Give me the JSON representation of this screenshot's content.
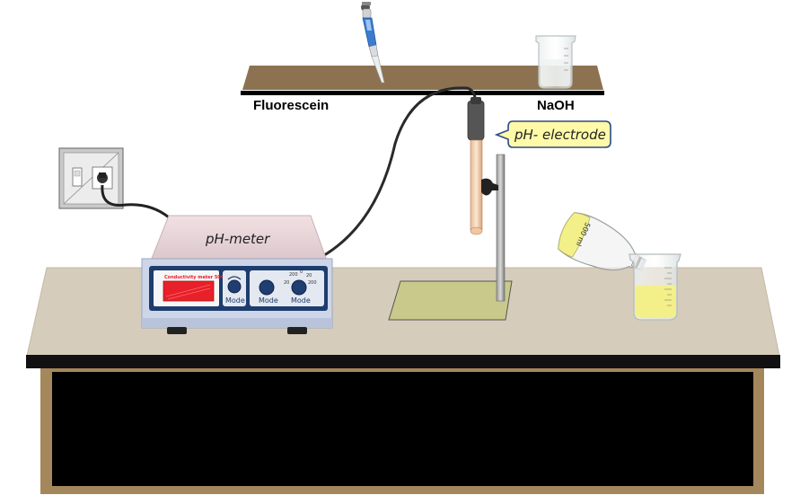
{
  "shelf": {
    "left_label": "Fluorescein",
    "right_label": "NaOH"
  },
  "electrode": {
    "callout": "pH- electrode"
  },
  "meter": {
    "title": "pH-meter",
    "display_brand": "Conductivity meter 504",
    "mode_buttons": [
      "Mode",
      "Mode",
      "Mode"
    ],
    "dial_marks": [
      "200",
      "0",
      "20",
      "20",
      "200"
    ]
  },
  "bottle": {
    "volume_label": "500 ml"
  },
  "colors": {
    "bench_top": "#d6ccbb",
    "bench_frame": "#a5875c",
    "cabinet": "#000000",
    "shelf": "#8c7250",
    "meter_body": "#cdd6e8",
    "meter_top": "#e8d2d6",
    "meter_panel": "#1d3d6e",
    "display_red": "#e8202a",
    "callout_fill": "#fffaa8",
    "callout_border": "#2d4a86",
    "solution": "#f3f08a",
    "pipette_blue": "#3a7cd0"
  }
}
